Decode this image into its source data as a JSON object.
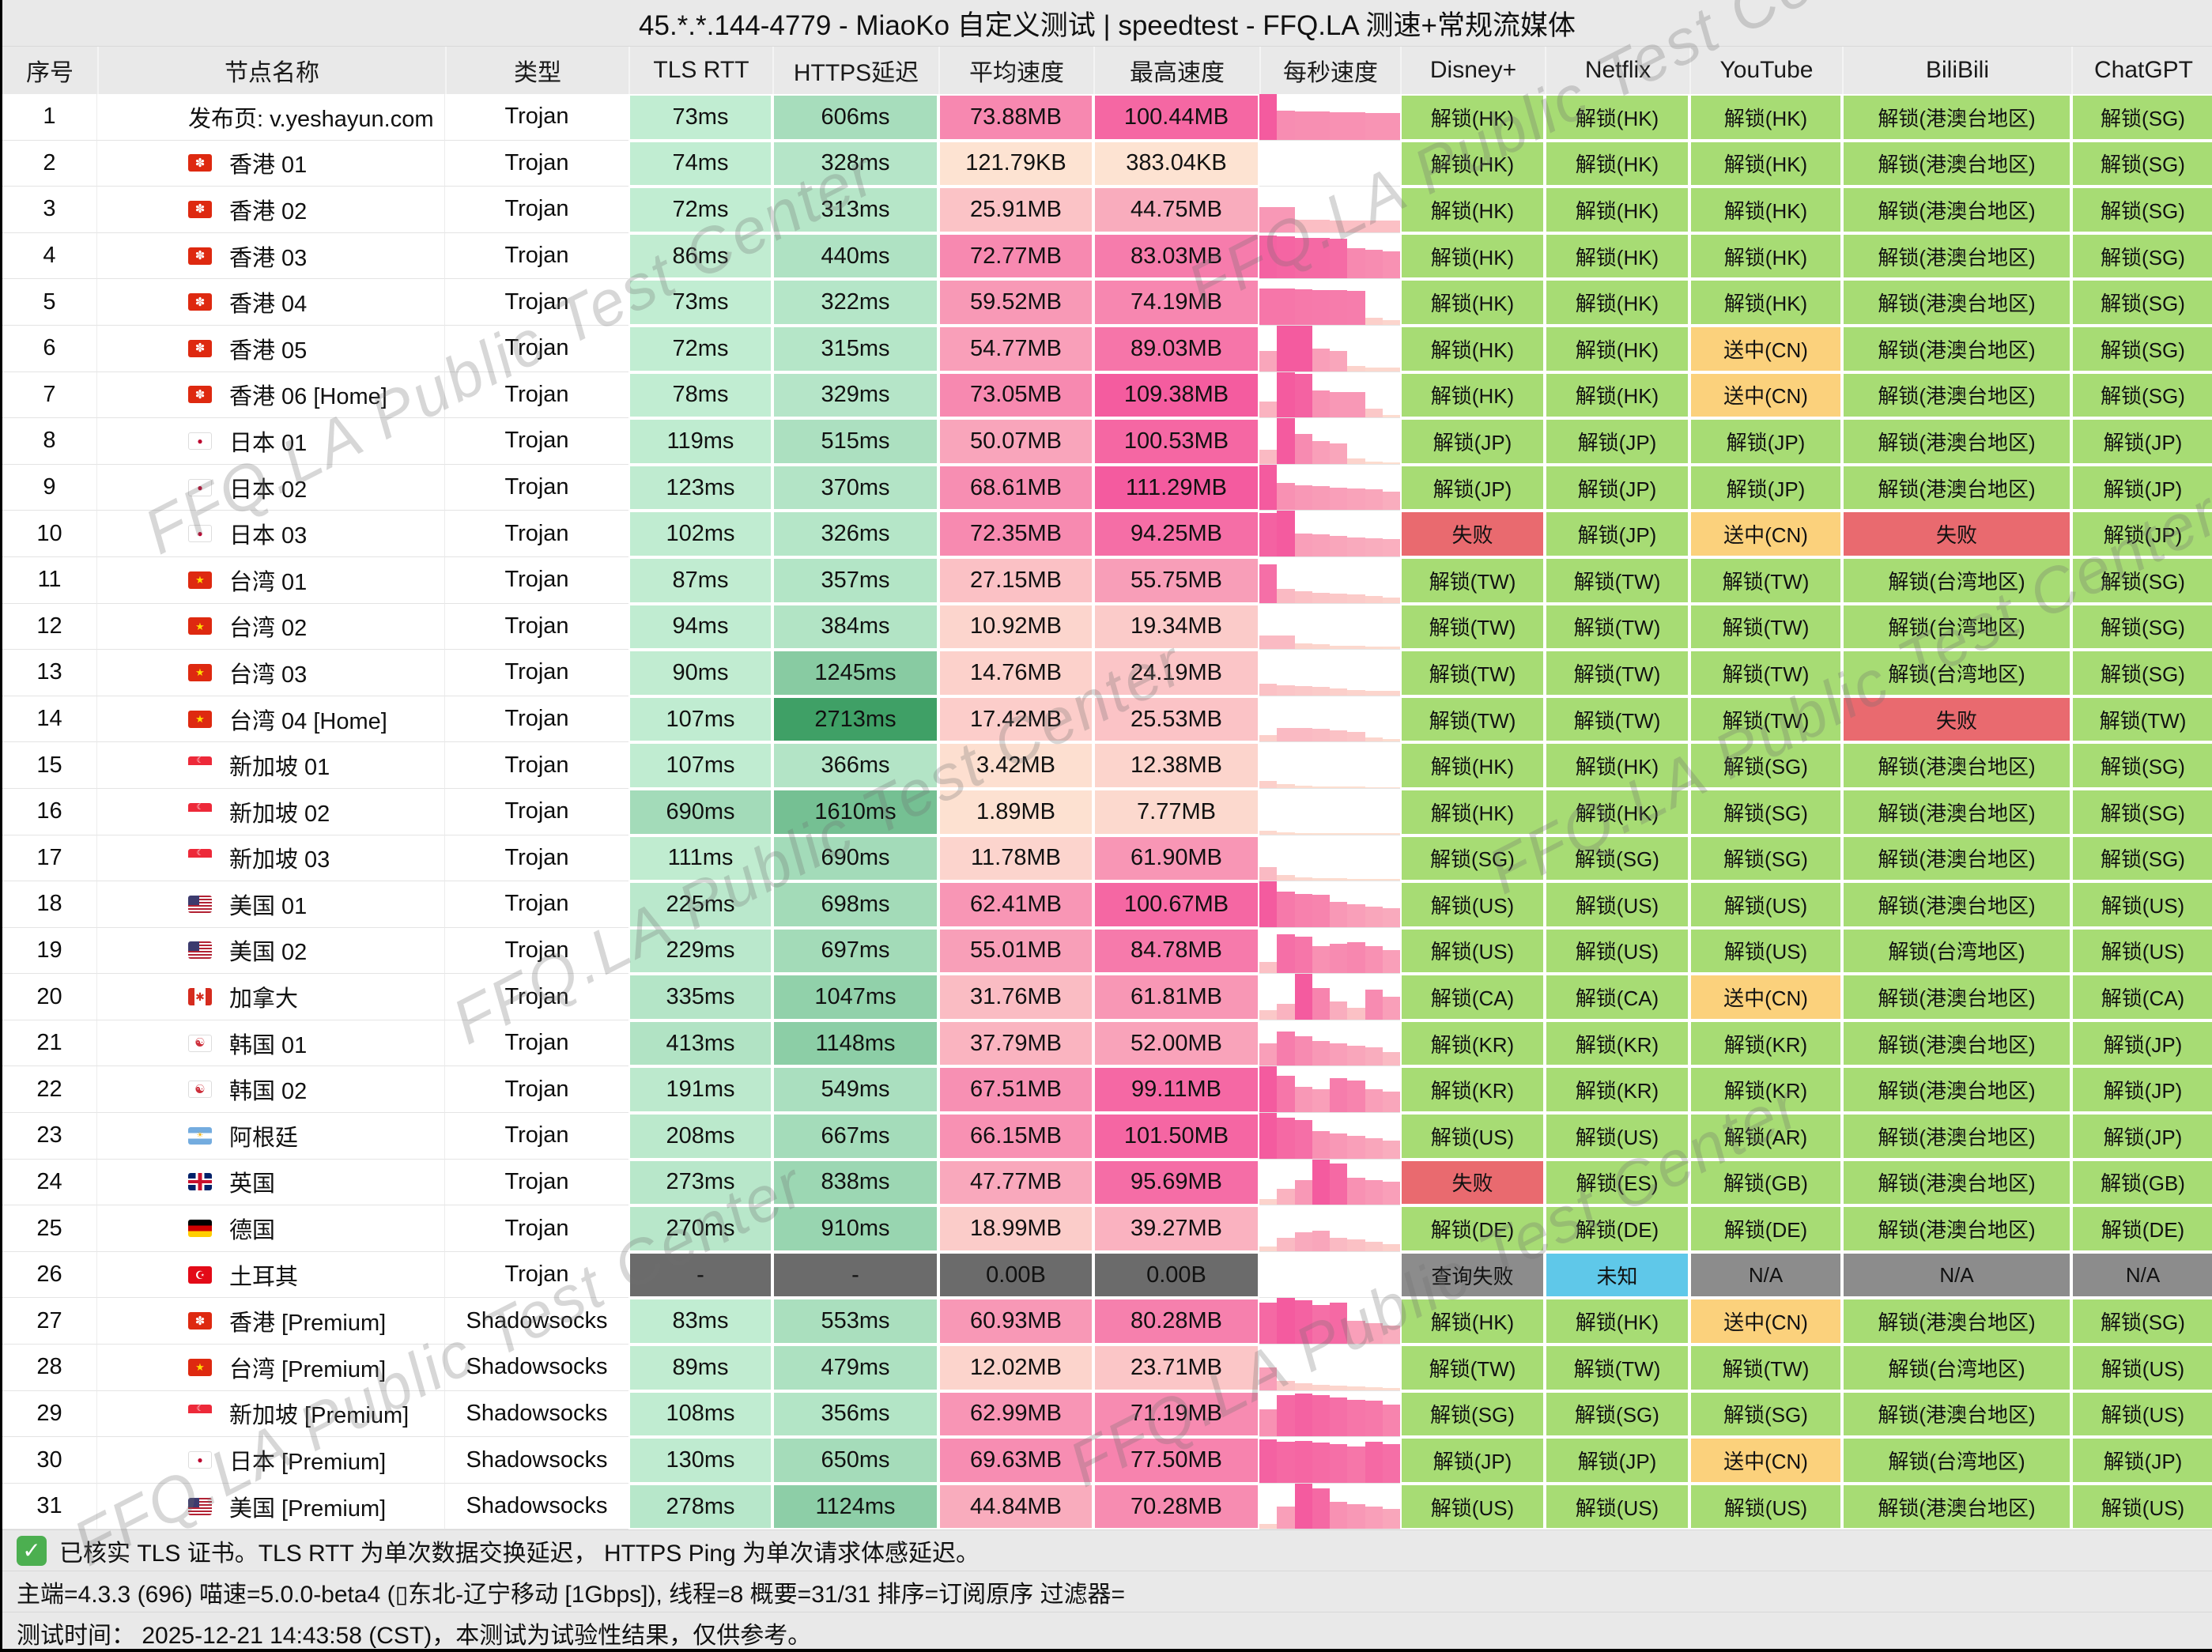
{
  "title": "45.*.*.144-4779 - MiaoKo 自定义测试 | speedtest - FFQ.LA 测速+常规流媒体",
  "watermark": "FFQ.LA Public Test Center",
  "columns": [
    {
      "label": "序号",
      "slug": "index"
    },
    {
      "label": "节点名称",
      "slug": "node-name"
    },
    {
      "label": "类型",
      "slug": "type"
    },
    {
      "label": "TLS RTT",
      "slug": "tls-rtt"
    },
    {
      "label": "HTTPS延迟",
      "slug": "https-latency"
    },
    {
      "label": "平均速度",
      "slug": "avg-speed"
    },
    {
      "label": "最高速度",
      "slug": "max-speed"
    },
    {
      "label": "每秒速度",
      "slug": "per-second-speed"
    },
    {
      "label": "Disney+",
      "slug": "disney"
    },
    {
      "label": "Netflix",
      "slug": "netflix"
    },
    {
      "label": "YouTube",
      "slug": "youtube"
    },
    {
      "label": "BiliBili",
      "slug": "bilibili"
    },
    {
      "label": "ChatGPT",
      "slug": "chatgpt"
    }
  ],
  "flag_glyphs": {
    "hk": "✽",
    "jp": "●",
    "cn": "★",
    "sg": "☾",
    "us": "",
    "ca": "✱",
    "kr": "☯",
    "ar": "☀",
    "gb": "",
    "de": "",
    "tr": "☪"
  },
  "colors": {
    "unlock_green": "#a7dc74",
    "cn_orange": "#fbd17c",
    "fail_red": "#e96a6f",
    "na_grey": "#8c8c8c",
    "unknown_cyan": "#5fc8e9",
    "dead_grey": "#6b6b6b",
    "latency_light": "#c5efd5",
    "latency_dark": "#3fa066",
    "speed_light": "#fde3d2",
    "speed_deep": "#f45b9f"
  },
  "rows": [
    {
      "n": 1,
      "flag": "",
      "name": "发布页: v.yeshayun.com",
      "type": "Trojan",
      "tls": 73,
      "https": 606,
      "avg": [
        "73.88MB",
        73.88
      ],
      "max": [
        "100.44MB",
        100.44
      ],
      "bars": [
        1,
        0.63,
        0.62,
        0.62,
        0.6,
        0.6,
        0.58,
        0.58
      ],
      "st": [
        "g|解锁(HK)",
        "g|解锁(HK)",
        "g|解锁(HK)",
        "g|解锁(港澳台地区)",
        "g|解锁(SG)"
      ]
    },
    {
      "n": 2,
      "flag": "hk",
      "name": "香港 01",
      "type": "Trojan",
      "tls": 74,
      "https": 328,
      "avg": [
        "121.79KB",
        0.12
      ],
      "max": [
        "383.04KB",
        0.37
      ],
      "bars": [
        0,
        0,
        0,
        0,
        0,
        0,
        0,
        0
      ],
      "st": [
        "g|解锁(HK)",
        "g|解锁(HK)",
        "g|解锁(HK)",
        "g|解锁(港澳台地区)",
        "g|解锁(SG)"
      ]
    },
    {
      "n": 3,
      "flag": "hk",
      "name": "香港 02",
      "type": "Trojan",
      "tls": 72,
      "https": 313,
      "avg": [
        "25.91MB",
        25.91
      ],
      "max": [
        "44.75MB",
        44.75
      ],
      "bars": [
        0.55,
        0.55,
        0.27,
        0.27,
        0.26,
        0.26,
        0.26,
        0.26
      ],
      "st": [
        "g|解锁(HK)",
        "g|解锁(HK)",
        "g|解锁(HK)",
        "g|解锁(港澳台地区)",
        "g|解锁(SG)"
      ]
    },
    {
      "n": 4,
      "flag": "hk",
      "name": "香港 03",
      "type": "Trojan",
      "tls": 86,
      "https": 440,
      "avg": [
        "72.77MB",
        72.77
      ],
      "max": [
        "83.03MB",
        83.03
      ],
      "bars": [
        0.95,
        0.93,
        0.9,
        0.9,
        0.88,
        0.66,
        0.64,
        0.6
      ],
      "st": [
        "g|解锁(HK)",
        "g|解锁(HK)",
        "g|解锁(HK)",
        "g|解锁(港澳台地区)",
        "g|解锁(SG)"
      ]
    },
    {
      "n": 5,
      "flag": "hk",
      "name": "香港 04",
      "type": "Trojan",
      "tls": 73,
      "https": 322,
      "avg": [
        "59.52MB",
        59.52
      ],
      "max": [
        "74.19MB",
        74.19
      ],
      "bars": [
        0.8,
        0.8,
        0.78,
        0.77,
        0.76,
        0.75,
        0.15,
        0.1
      ],
      "st": [
        "g|解锁(HK)",
        "g|解锁(HK)",
        "g|解锁(HK)",
        "g|解锁(港澳台地区)",
        "g|解锁(SG)"
      ]
    },
    {
      "n": 6,
      "flag": "hk",
      "name": "香港 05",
      "type": "Trojan",
      "tls": 72,
      "https": 315,
      "avg": [
        "54.77MB",
        54.77
      ],
      "max": [
        "89.03MB",
        89.03
      ],
      "bars": [
        0.45,
        1,
        1,
        0.5,
        0.45,
        0.12,
        0.08,
        0.08
      ],
      "st": [
        "g|解锁(HK)",
        "g|解锁(HK)",
        "o|送中(CN)",
        "g|解锁(港澳台地区)",
        "g|解锁(SG)"
      ]
    },
    {
      "n": 7,
      "flag": "hk",
      "name": "香港 06 [Home]",
      "type": "Trojan",
      "tls": 78,
      "https": 329,
      "avg": [
        "73.05MB",
        73.05
      ],
      "max": [
        "109.38MB",
        109.38
      ],
      "bars": [
        0.35,
        1,
        0.95,
        0.6,
        0.55,
        0.55,
        0.2,
        0.05
      ],
      "st": [
        "g|解锁(HK)",
        "g|解锁(HK)",
        "o|送中(CN)",
        "g|解锁(港澳台地区)",
        "g|解锁(SG)"
      ]
    },
    {
      "n": 8,
      "flag": "jp",
      "name": "日本 01",
      "type": "Trojan",
      "tls": 119,
      "https": 515,
      "avg": [
        "50.07MB",
        50.07
      ],
      "max": [
        "100.53MB",
        100.53
      ],
      "bars": [
        0.3,
        1,
        0.65,
        0.5,
        0.45,
        0.12,
        0.05,
        0.03
      ],
      "st": [
        "g|解锁(JP)",
        "g|解锁(JP)",
        "g|解锁(JP)",
        "g|解锁(港澳台地区)",
        "g|解锁(JP)"
      ]
    },
    {
      "n": 9,
      "flag": "jp",
      "name": "日本 02",
      "type": "Trojan",
      "tls": 123,
      "https": 370,
      "avg": [
        "68.61MB",
        68.61
      ],
      "max": [
        "111.29MB",
        111.29
      ],
      "bars": [
        1,
        0.6,
        0.55,
        0.52,
        0.5,
        0.47,
        0.45,
        0.4
      ],
      "st": [
        "g|解锁(JP)",
        "g|解锁(JP)",
        "g|解锁(JP)",
        "g|解锁(港澳台地区)",
        "g|解锁(JP)"
      ]
    },
    {
      "n": 10,
      "flag": "jp",
      "name": "日本 03",
      "type": "Trojan",
      "tls": 102,
      "https": 326,
      "avg": [
        "72.35MB",
        72.35
      ],
      "max": [
        "94.25MB",
        94.25
      ],
      "bars": [
        0.95,
        1,
        0.5,
        0.48,
        0.45,
        0.42,
        0.4,
        0.38
      ],
      "st": [
        "r|失败",
        "g|解锁(JP)",
        "o|送中(CN)",
        "r|失败",
        "g|解锁(JP)"
      ]
    },
    {
      "n": 11,
      "flag": "cn",
      "name": "台湾 01",
      "type": "Trojan",
      "tls": 87,
      "https": 357,
      "avg": [
        "27.15MB",
        27.15
      ],
      "max": [
        "55.75MB",
        55.75
      ],
      "bars": [
        0.85,
        0.3,
        0.25,
        0.22,
        0.2,
        0.18,
        0.15,
        0.12
      ],
      "st": [
        "g|解锁(TW)",
        "g|解锁(TW)",
        "g|解锁(TW)",
        "g|解锁(台湾地区)",
        "g|解锁(SG)"
      ]
    },
    {
      "n": 12,
      "flag": "cn",
      "name": "台湾 02",
      "type": "Trojan",
      "tls": 94,
      "https": 384,
      "avg": [
        "10.92MB",
        10.92
      ],
      "max": [
        "19.34MB",
        19.34
      ],
      "bars": [
        0.3,
        0.3,
        0.12,
        0.1,
        0.08,
        0.08,
        0.06,
        0.05
      ],
      "st": [
        "g|解锁(TW)",
        "g|解锁(TW)",
        "g|解锁(TW)",
        "g|解锁(台湾地区)",
        "g|解锁(SG)"
      ]
    },
    {
      "n": 13,
      "flag": "cn",
      "name": "台湾 03",
      "type": "Trojan",
      "tls": 90,
      "https": 1245,
      "avg": [
        "14.76MB",
        14.76
      ],
      "max": [
        "24.19MB",
        24.19
      ],
      "bars": [
        0.25,
        0.22,
        0.2,
        0.18,
        0.15,
        0.12,
        0.1,
        0.1
      ],
      "st": [
        "g|解锁(TW)",
        "g|解锁(TW)",
        "g|解锁(TW)",
        "g|解锁(台湾地区)",
        "g|解锁(SG)"
      ]
    },
    {
      "n": 14,
      "flag": "cn",
      "name": "台湾 04 [Home]",
      "type": "Trojan",
      "tls": 107,
      "https": 2713,
      "avg": [
        "17.42MB",
        17.42
      ],
      "max": [
        "25.53MB",
        25.53
      ],
      "bars": [
        0.15,
        0.3,
        0.3,
        0.28,
        0.25,
        0.22,
        0.1,
        0.05
      ],
      "st": [
        "g|解锁(TW)",
        "g|解锁(TW)",
        "g|解锁(TW)",
        "r|失败",
        "g|解锁(TW)"
      ]
    },
    {
      "n": 15,
      "flag": "sg",
      "name": "新加坡 01",
      "type": "Trojan",
      "tls": 107,
      "https": 366,
      "avg": [
        "3.42MB",
        3.42
      ],
      "max": [
        "12.38MB",
        12.38
      ],
      "bars": [
        0.15,
        0.08,
        0.05,
        0.04,
        0.03,
        0.03,
        0.02,
        0.02
      ],
      "st": [
        "g|解锁(HK)",
        "g|解锁(HK)",
        "g|解锁(SG)",
        "g|解锁(港澳台地区)",
        "g|解锁(SG)"
      ]
    },
    {
      "n": 16,
      "flag": "sg",
      "name": "新加坡 02",
      "type": "Trojan",
      "tls": 690,
      "https": 1610,
      "avg": [
        "1.89MB",
        1.89
      ],
      "max": [
        "7.77MB",
        7.77
      ],
      "bars": [
        0.08,
        0.05,
        0.03,
        0.02,
        0.02,
        0.02,
        0.02,
        0.02
      ],
      "st": [
        "g|解锁(HK)",
        "g|解锁(HK)",
        "g|解锁(SG)",
        "g|解锁(港澳台地区)",
        "g|解锁(SG)"
      ]
    },
    {
      "n": 17,
      "flag": "sg",
      "name": "新加坡 03",
      "type": "Trojan",
      "tls": 111,
      "https": 690,
      "avg": [
        "11.78MB",
        11.78
      ],
      "max": [
        "61.90MB",
        61.9
      ],
      "bars": [
        0.3,
        0.12,
        0.08,
        0.06,
        0.05,
        0.04,
        0.03,
        0.03
      ],
      "st": [
        "g|解锁(SG)",
        "g|解锁(SG)",
        "g|解锁(SG)",
        "g|解锁(港澳台地区)",
        "g|解锁(SG)"
      ]
    },
    {
      "n": 18,
      "flag": "us",
      "name": "美国 01",
      "type": "Trojan",
      "tls": 225,
      "https": 698,
      "avg": [
        "62.41MB",
        62.41
      ],
      "max": [
        "100.67MB",
        100.67
      ],
      "bars": [
        1,
        0.78,
        0.72,
        0.7,
        0.55,
        0.5,
        0.45,
        0.42
      ],
      "st": [
        "g|解锁(US)",
        "g|解锁(US)",
        "g|解锁(US)",
        "g|解锁(港澳台地区)",
        "g|解锁(US)"
      ]
    },
    {
      "n": 19,
      "flag": "us",
      "name": "美国 02",
      "type": "Trojan",
      "tls": 229,
      "https": 697,
      "avg": [
        "55.01MB",
        55.01
      ],
      "max": [
        "84.78MB",
        84.78
      ],
      "bars": [
        0.25,
        0.85,
        0.8,
        0.6,
        0.65,
        0.68,
        0.6,
        0.5
      ],
      "st": [
        "g|解锁(US)",
        "g|解锁(US)",
        "g|解锁(US)",
        "g|解锁(台湾地区)",
        "g|解锁(US)"
      ]
    },
    {
      "n": 20,
      "flag": "ca",
      "name": "加拿大",
      "type": "Trojan",
      "tls": 335,
      "https": 1047,
      "avg": [
        "31.76MB",
        31.76
      ],
      "max": [
        "61.81MB",
        61.81
      ],
      "bars": [
        0.2,
        0.35,
        1,
        0.7,
        0.4,
        0.25,
        0.65,
        0.5
      ],
      "st": [
        "g|解锁(CA)",
        "g|解锁(CA)",
        "o|送中(CN)",
        "g|解锁(港澳台地区)",
        "g|解锁(CA)"
      ]
    },
    {
      "n": 21,
      "flag": "kr",
      "name": "韩国 01",
      "type": "Trojan",
      "tls": 413,
      "https": 1148,
      "avg": [
        "37.79MB",
        37.79
      ],
      "max": [
        "52.00MB",
        52
      ],
      "bars": [
        0.5,
        0.75,
        0.65,
        0.55,
        0.5,
        0.45,
        0.4,
        0.3
      ],
      "st": [
        "g|解锁(KR)",
        "g|解锁(KR)",
        "g|解锁(KR)",
        "g|解锁(港澳台地区)",
        "g|解锁(JP)"
      ]
    },
    {
      "n": 22,
      "flag": "kr",
      "name": "韩国 02",
      "type": "Trojan",
      "tls": 191,
      "https": 549,
      "avg": [
        "67.51MB",
        67.51
      ],
      "max": [
        "99.11MB",
        99.11
      ],
      "bars": [
        1,
        0.8,
        0.55,
        0.5,
        0.75,
        0.7,
        0.5,
        0.45
      ],
      "st": [
        "g|解锁(KR)",
        "g|解锁(KR)",
        "g|解锁(KR)",
        "g|解锁(港澳台地区)",
        "g|解锁(JP)"
      ]
    },
    {
      "n": 23,
      "flag": "ar",
      "name": "阿根廷",
      "type": "Trojan",
      "tls": 208,
      "https": 667,
      "avg": [
        "66.15MB",
        66.15
      ],
      "max": [
        "101.50MB",
        101.5
      ],
      "bars": [
        1,
        0.9,
        0.85,
        0.6,
        0.55,
        0.5,
        0.45,
        0.4
      ],
      "st": [
        "g|解锁(US)",
        "g|解锁(US)",
        "g|解锁(AR)",
        "g|解锁(港澳台地区)",
        "g|解锁(JP)"
      ]
    },
    {
      "n": 24,
      "flag": "gb",
      "name": "英国",
      "type": "Trojan",
      "tls": 273,
      "https": 838,
      "avg": [
        "47.77MB",
        47.77
      ],
      "max": [
        "95.69MB",
        95.69
      ],
      "bars": [
        0.12,
        0.35,
        0.55,
        1,
        0.9,
        0.6,
        0.55,
        0.5
      ],
      "st": [
        "r|失败",
        "g|解锁(ES)",
        "g|解锁(GB)",
        "g|解锁(港澳台地区)",
        "g|解锁(GB)"
      ]
    },
    {
      "n": 25,
      "flag": "de",
      "name": "德国",
      "type": "Trojan",
      "tls": 270,
      "https": 910,
      "avg": [
        "18.99MB",
        18.99
      ],
      "max": [
        "39.27MB",
        39.27
      ],
      "bars": [
        0.1,
        0.3,
        0.42,
        0.45,
        0.3,
        0.25,
        0.2,
        0.15
      ],
      "st": [
        "g|解锁(DE)",
        "g|解锁(DE)",
        "g|解锁(DE)",
        "g|解锁(港澳台地区)",
        "g|解锁(DE)"
      ]
    },
    {
      "n": 26,
      "flag": "tr",
      "name": "土耳其",
      "type": "Trojan",
      "tls": -1,
      "https": -1,
      "avg": [
        "0.00B",
        -1
      ],
      "max": [
        "0.00B",
        -1
      ],
      "bars": [
        0,
        0,
        0,
        0,
        0,
        0,
        0,
        0
      ],
      "st": [
        "q|查询失败",
        "u|未知",
        "n|N/A",
        "n|N/A",
        "n|N/A"
      ]
    },
    {
      "n": 27,
      "flag": "hk",
      "name": "香港 [Premium]",
      "type": "Shadowsocks",
      "tls": 83,
      "https": 553,
      "avg": [
        "60.93MB",
        60.93
      ],
      "max": [
        "80.28MB",
        80.28
      ],
      "bars": [
        0.9,
        1,
        0.95,
        0.85,
        0.9,
        0.5,
        0.45,
        0.4
      ],
      "st": [
        "g|解锁(HK)",
        "g|解锁(HK)",
        "o|送中(CN)",
        "g|解锁(港澳台地区)",
        "g|解锁(SG)"
      ]
    },
    {
      "n": 28,
      "flag": "cn",
      "name": "台湾 [Premium]",
      "type": "Shadowsocks",
      "tls": 89,
      "https": 479,
      "avg": [
        "12.02MB",
        12.02
      ],
      "max": [
        "23.71MB",
        23.71
      ],
      "bars": [
        0.5,
        0.2,
        0.15,
        0.12,
        0.1,
        0.08,
        0.06,
        0.05
      ],
      "st": [
        "g|解锁(TW)",
        "g|解锁(TW)",
        "g|解锁(TW)",
        "g|解锁(台湾地区)",
        "g|解锁(US)"
      ]
    },
    {
      "n": 29,
      "flag": "sg",
      "name": "新加坡 [Premium]",
      "type": "Shadowsocks",
      "tls": 108,
      "https": 356,
      "avg": [
        "62.99MB",
        62.99
      ],
      "max": [
        "71.19MB",
        71.19
      ],
      "bars": [
        0.6,
        0.9,
        0.95,
        0.9,
        0.85,
        0.8,
        0.78,
        0.7
      ],
      "st": [
        "g|解锁(SG)",
        "g|解锁(SG)",
        "g|解锁(SG)",
        "g|解锁(港澳台地区)",
        "g|解锁(US)"
      ]
    },
    {
      "n": 30,
      "flag": "jp",
      "name": "日本 [Premium]",
      "type": "Shadowsocks",
      "tls": 130,
      "https": 650,
      "avg": [
        "69.63MB",
        69.63
      ],
      "max": [
        "77.50MB",
        77.5
      ],
      "bars": [
        0.95,
        0.9,
        0.92,
        0.88,
        0.85,
        0.8,
        0.9,
        0.85
      ],
      "st": [
        "g|解锁(JP)",
        "g|解锁(JP)",
        "o|送中(CN)",
        "g|解锁(台湾地区)",
        "g|解锁(JP)"
      ]
    },
    {
      "n": 31,
      "flag": "us",
      "name": "美国 [Premium]",
      "type": "Shadowsocks",
      "tls": 278,
      "https": 1124,
      "avg": [
        "44.84MB",
        44.84
      ],
      "max": [
        "70.28MB",
        70.28
      ],
      "bars": [
        0.12,
        0.5,
        1,
        0.9,
        0.6,
        0.55,
        0.5,
        0.45
      ],
      "st": [
        "g|解锁(US)",
        "g|解锁(US)",
        "g|解锁(US)",
        "g|解锁(港澳台地区)",
        "g|解锁(US)"
      ]
    }
  ],
  "footer": {
    "check_icon": "✓",
    "note1": "已核实 TLS 证书。TLS RTT 为单次数据交换延迟， HTTPS Ping 为单次请求体感延迟。",
    "note2": "主端=4.3.3 (696) 喵速=5.0.0-beta4 (▯东北-辽宁移动 [1Gbps]), 线程=8 概要=31/31 排序=订阅原序 过滤器=",
    "note3": "测试时间： 2025-12-21 14:43:58 (CST)，本测试为试验性结果，仅供参考。"
  }
}
